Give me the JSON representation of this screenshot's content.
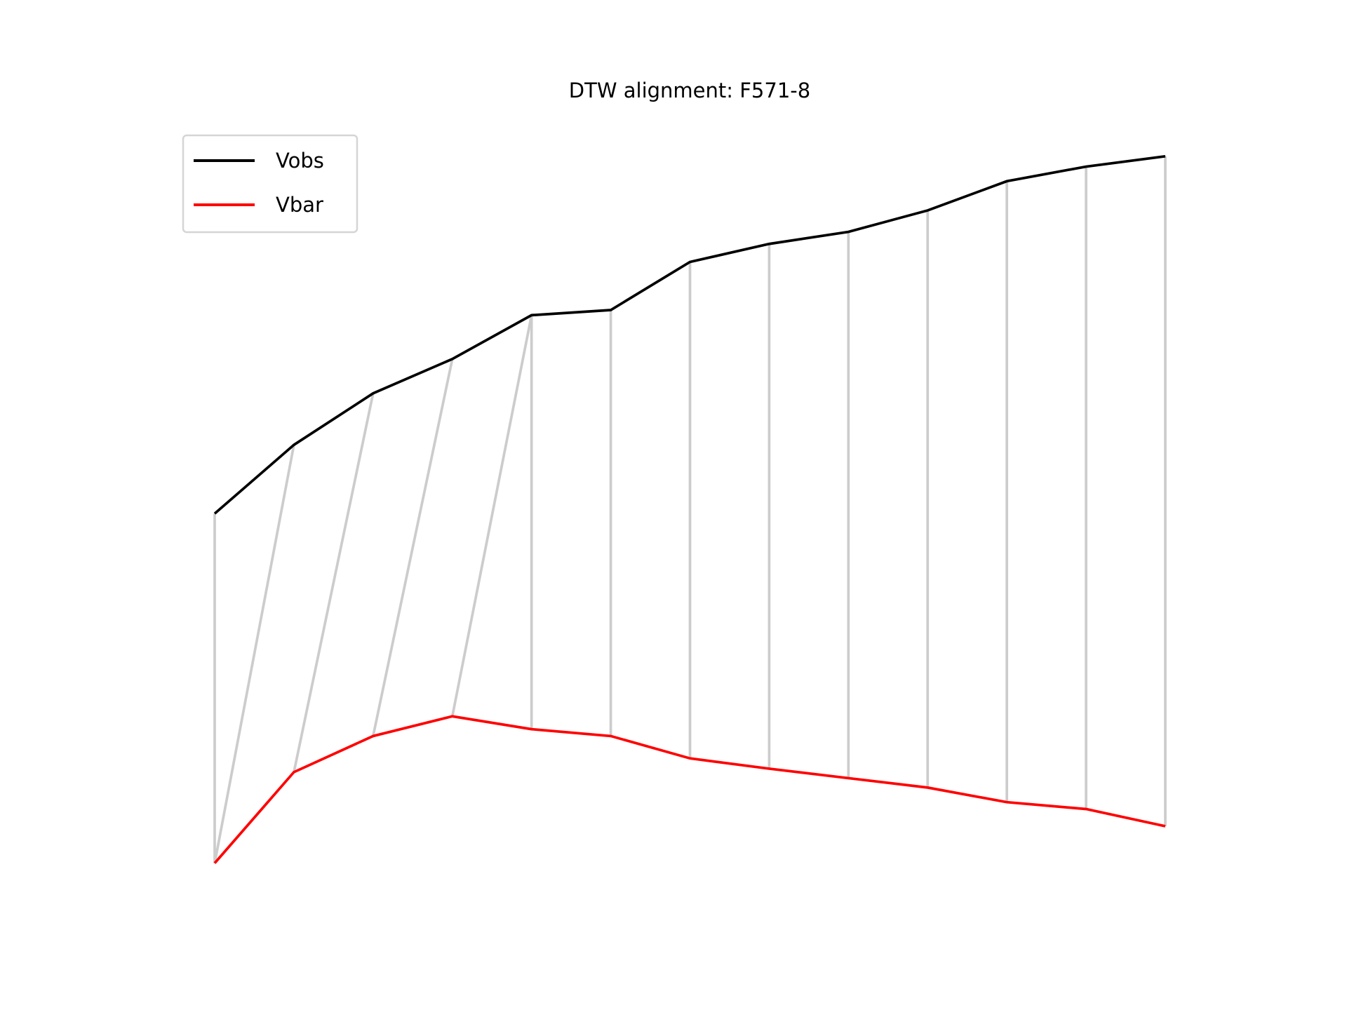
{
  "chart_data": {
    "type": "line",
    "title": "DTW alignment: F571-8",
    "series": [
      {
        "name": "Vobs",
        "color": "#000000",
        "values": [
          44.2,
          52.2,
          58.2,
          62.2,
          67.3,
          67.9,
          73.5,
          75.6,
          77.0,
          79.5,
          82.9,
          84.6,
          85.8
        ]
      },
      {
        "name": "Vbar",
        "color": "#ff0000",
        "values": [
          3.5,
          14.1,
          18.3,
          20.6,
          19.1,
          18.3,
          15.7,
          14.5,
          13.4,
          12.3,
          10.6,
          9.8,
          7.8
        ]
      }
    ],
    "alignment": [
      [
        0,
        0
      ],
      [
        1,
        0
      ],
      [
        2,
        1
      ],
      [
        3,
        2
      ],
      [
        4,
        3
      ],
      [
        4,
        4
      ],
      [
        5,
        5
      ],
      [
        6,
        6
      ],
      [
        7,
        7
      ],
      [
        8,
        8
      ],
      [
        9,
        9
      ],
      [
        10,
        10
      ],
      [
        11,
        11
      ],
      [
        12,
        12
      ]
    ],
    "alignment_color": "#cccccc",
    "ylim": [
      0,
      90
    ],
    "legend": "upper left"
  }
}
